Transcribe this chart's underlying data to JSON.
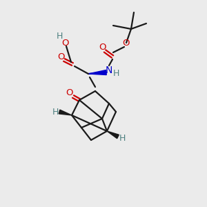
{
  "bg_color": "#ebebeb",
  "bond_color": "#1a1a1a",
  "oxygen_color": "#cc0000",
  "nitrogen_color": "#0000cc",
  "hydrogen_color": "#4d8080",
  "line_width": 1.6,
  "fig_size": [
    3.0,
    3.0
  ],
  "dpi": 100,
  "xlim": [
    0,
    300
  ],
  "ylim": [
    0,
    300
  ]
}
